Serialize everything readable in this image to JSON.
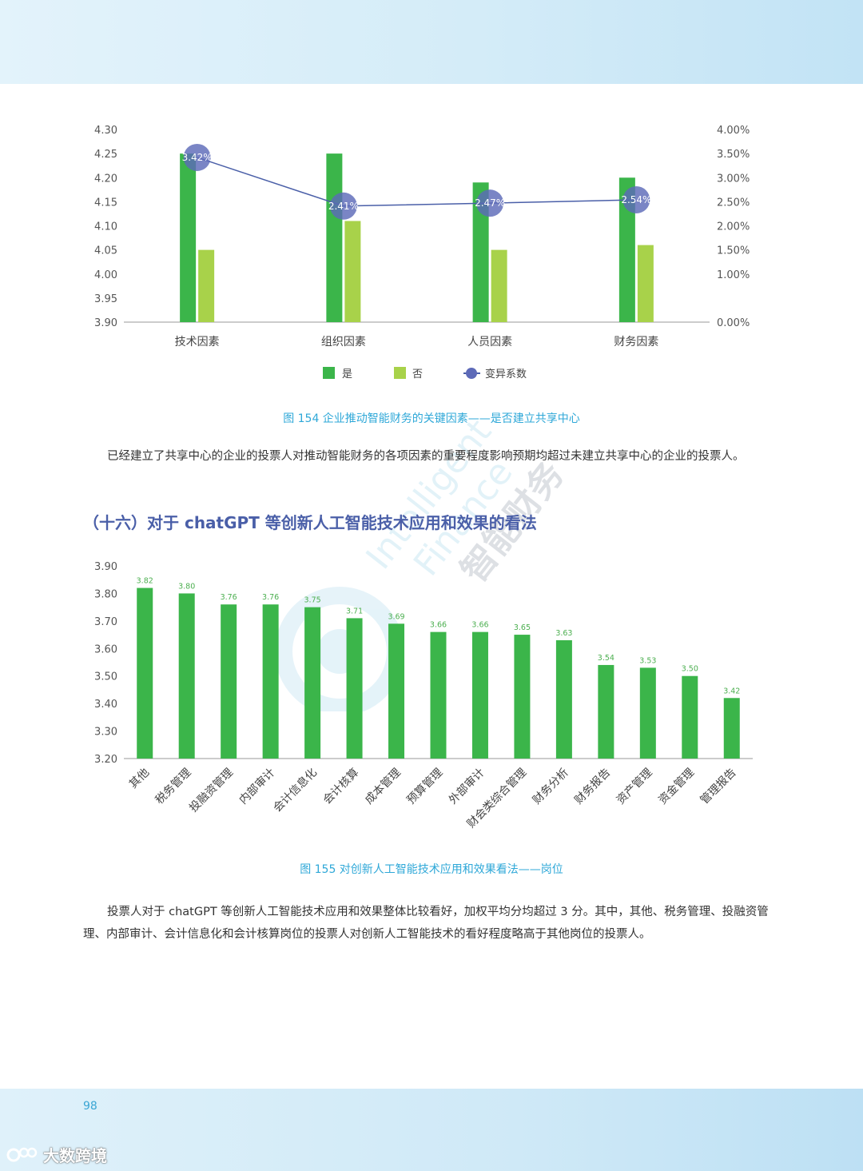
{
  "colors": {
    "bar_yes": "#3bb54a",
    "bar_no": "#a8d24a",
    "line_cv": "#4a5fa8",
    "point_fill": "#5d6ab8",
    "caption": "#2fa8d8",
    "title": "#4a5fa8"
  },
  "chart_data": [
    {
      "type": "bar",
      "categories": [
        "技术因素",
        "组织因素",
        "人员因素",
        "财务因素"
      ],
      "series": [
        {
          "name": "是",
          "values": [
            4.25,
            4.25,
            4.19,
            4.2
          ]
        },
        {
          "name": "否",
          "values": [
            4.05,
            4.11,
            4.05,
            4.06
          ]
        },
        {
          "name": "变异系数",
          "kind": "line",
          "axis": "right",
          "values": [
            3.42,
            2.41,
            2.47,
            2.54
          ],
          "labels": [
            "3.42%",
            "2.41%",
            "2.47%",
            "2.54%"
          ]
        }
      ],
      "ylim": [
        3.9,
        4.3
      ],
      "y_ticks": [
        "4.30",
        "4.25",
        "4.20",
        "4.15",
        "4.10",
        "4.05",
        "4.00",
        "3.95",
        "3.90"
      ],
      "y2lim": [
        0,
        4
      ],
      "y2_ticks": [
        "4.00%",
        "3.50%",
        "3.00%",
        "2.50%",
        "2.00%",
        "1.50%",
        "1.00%",
        "0.00%"
      ],
      "y2_tick_values": [
        4.0,
        3.5,
        3.0,
        2.5,
        2.0,
        1.5,
        1.0,
        0.0
      ],
      "legend": "bottom",
      "grid": false
    },
    {
      "type": "bar",
      "categories": [
        "其他",
        "税务管理",
        "投融资管理",
        "内部审计",
        "会计信息化",
        "会计核算",
        "成本管理",
        "预算管理",
        "外部审计",
        "财会类综合管理",
        "财务分析",
        "财务报告",
        "资产管理",
        "资金管理",
        "管理报告"
      ],
      "values": [
        3.82,
        3.8,
        3.76,
        3.76,
        3.75,
        3.71,
        3.69,
        3.66,
        3.66,
        3.65,
        3.63,
        3.54,
        3.53,
        3.5,
        3.42
      ],
      "value_labels": [
        "3.82",
        "3.80",
        "3.76",
        "3.76",
        "3.75",
        "3.71",
        "3.69",
        "3.66",
        "3.66",
        "3.65",
        "3.63",
        "3.54",
        "3.53",
        "3.50",
        "3.42"
      ],
      "ylim": [
        3.2,
        3.9
      ],
      "y_ticks": [
        "3.90",
        "3.80",
        "3.70",
        "3.60",
        "3.50",
        "3.40",
        "3.30",
        "3.20"
      ],
      "grid": false
    }
  ],
  "captions": {
    "fig154": "图 154  企业推动智能财务的关键因素——是否建立共享中心",
    "fig155": "图 155   对创新人工智能技术应用和效果看法——岗位"
  },
  "paragraphs": {
    "p1": "已经建立了共享中心的企业的投票人对推动智能财务的各项因素的重要程度影响预期均超过未建立共享中心的企业的投票人。",
    "p2": "投票人对于 chatGPT 等创新人工智能技术应用和效果整体比较看好，加权平均分均超过 3 分。其中，其他、税务管理、投融资管理、内部审计、会计信息化和会计核算岗位的投票人对创新人工智能技术的看好程度略高于其他岗位的投票人。"
  },
  "section_title": "（十六）对于 chatGPT 等创新人工智能技术应用和效果的看法",
  "watermark": {
    "line1": "Intelligent",
    "line2": "Finance",
    "line3": "智能财务"
  },
  "page_number": "98",
  "brand": "大数跨境"
}
